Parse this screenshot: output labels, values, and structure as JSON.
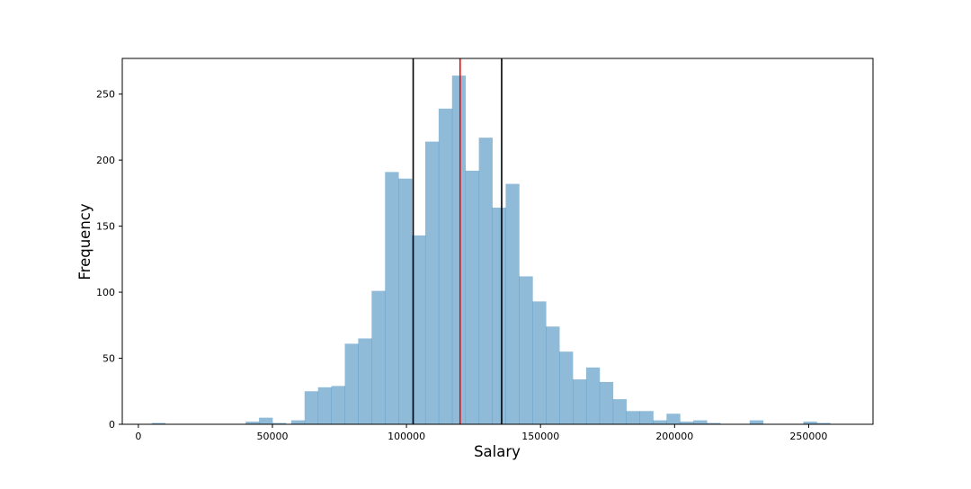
{
  "chart_data": {
    "type": "bar",
    "xlabel": "Salary",
    "ylabel": "Frequency",
    "xlim": [
      -6000,
      274000
    ],
    "ylim": [
      0,
      277
    ],
    "x_ticks": [
      0,
      50000,
      100000,
      150000,
      200000,
      250000
    ],
    "y_ticks": [
      0,
      50,
      100,
      150,
      200,
      250
    ],
    "bar_color": "#1f77b4",
    "bar_alpha": 0.5,
    "bins": [
      {
        "x0": 5000,
        "x1": 10000,
        "count": 1
      },
      {
        "x0": 40000,
        "x1": 45000,
        "count": 2
      },
      {
        "x0": 45000,
        "x1": 50000,
        "count": 5
      },
      {
        "x0": 50000,
        "x1": 55000,
        "count": 1
      },
      {
        "x0": 57000,
        "x1": 62000,
        "count": 3
      },
      {
        "x0": 62000,
        "x1": 67000,
        "count": 25
      },
      {
        "x0": 67000,
        "x1": 72000,
        "count": 28
      },
      {
        "x0": 72000,
        "x1": 77000,
        "count": 29
      },
      {
        "x0": 77000,
        "x1": 82000,
        "count": 61
      },
      {
        "x0": 82000,
        "x1": 87000,
        "count": 65
      },
      {
        "x0": 87000,
        "x1": 92000,
        "count": 101
      },
      {
        "x0": 92000,
        "x1": 97000,
        "count": 191
      },
      {
        "x0": 97000,
        "x1": 102000,
        "count": 186
      },
      {
        "x0": 102000,
        "x1": 107000,
        "count": 143
      },
      {
        "x0": 107000,
        "x1": 112000,
        "count": 214
      },
      {
        "x0": 112000,
        "x1": 117000,
        "count": 239
      },
      {
        "x0": 117000,
        "x1": 122000,
        "count": 264
      },
      {
        "x0": 122000,
        "x1": 127000,
        "count": 192
      },
      {
        "x0": 127000,
        "x1": 132000,
        "count": 217
      },
      {
        "x0": 132000,
        "x1": 137000,
        "count": 164
      },
      {
        "x0": 137000,
        "x1": 142000,
        "count": 182
      },
      {
        "x0": 142000,
        "x1": 147000,
        "count": 112
      },
      {
        "x0": 147000,
        "x1": 152000,
        "count": 93
      },
      {
        "x0": 152000,
        "x1": 157000,
        "count": 74
      },
      {
        "x0": 157000,
        "x1": 162000,
        "count": 55
      },
      {
        "x0": 162000,
        "x1": 167000,
        "count": 34
      },
      {
        "x0": 167000,
        "x1": 172000,
        "count": 43
      },
      {
        "x0": 172000,
        "x1": 177000,
        "count": 32
      },
      {
        "x0": 177000,
        "x1": 182000,
        "count": 19
      },
      {
        "x0": 182000,
        "x1": 187000,
        "count": 10
      },
      {
        "x0": 187000,
        "x1": 192000,
        "count": 10
      },
      {
        "x0": 192000,
        "x1": 197000,
        "count": 3
      },
      {
        "x0": 197000,
        "x1": 202000,
        "count": 8
      },
      {
        "x0": 202000,
        "x1": 207000,
        "count": 2
      },
      {
        "x0": 207000,
        "x1": 212000,
        "count": 3
      },
      {
        "x0": 212000,
        "x1": 217000,
        "count": 1
      },
      {
        "x0": 228000,
        "x1": 233000,
        "count": 3
      },
      {
        "x0": 248000,
        "x1": 253000,
        "count": 2
      },
      {
        "x0": 253000,
        "x1": 258000,
        "count": 1
      }
    ],
    "vertical_lines": [
      {
        "x": 102500,
        "color": "#000000"
      },
      {
        "x": 120000,
        "color": "#ff0000"
      },
      {
        "x": 135500,
        "color": "#000000"
      }
    ],
    "grid": false,
    "legend": "none"
  }
}
